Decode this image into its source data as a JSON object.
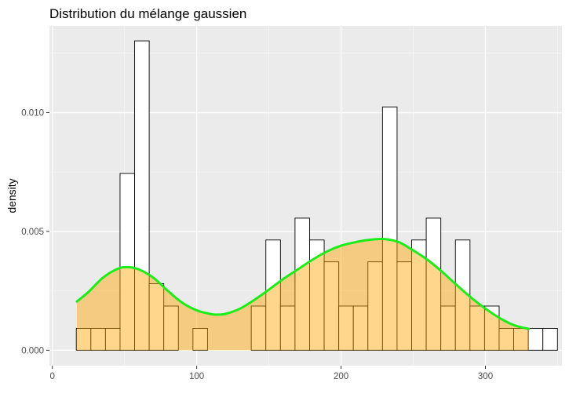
{
  "chart_data": {
    "type": "bar",
    "title": "Distribution du mélange gaussien",
    "xlabel": "",
    "ylabel": "density",
    "xlim": [
      -2,
      353
    ],
    "ylim": [
      -0.00065,
      0.01365
    ],
    "x_ticks": [
      0,
      100,
      200,
      300
    ],
    "x_tick_labels": [
      "0",
      "100",
      "200",
      "300"
    ],
    "y_ticks": [
      0.0,
      0.005,
      0.01
    ],
    "y_tick_labels": [
      "0.000",
      "0.005",
      "0.010"
    ],
    "grid": true,
    "colors": {
      "panel_background": "#ebebeb",
      "grid_major": "#ffffff",
      "grid_minor": "#f5f5f5",
      "histogram_fill": "#ffffff",
      "histogram_outline": "#000000",
      "density_fill": "#ffa500",
      "density_line": "#1aee1a"
    },
    "histogram": {
      "bin_width": 10.1,
      "bin_start": 16.6,
      "counts": [
        0.00092,
        0.00092,
        0.00092,
        0.00744,
        0.01302,
        0.0028,
        0.00186,
        0,
        0.00092,
        0,
        0,
        0,
        0.00186,
        0.00464,
        0.00186,
        0.00556,
        0.00464,
        0.00372,
        0.00186,
        0.00186,
        0.00372,
        0.01024,
        0.00372,
        0.00464,
        0.00556,
        0.00186,
        0.00464,
        0.00186,
        0.00186,
        0.00092,
        0.00092,
        0.00092,
        0.00092
      ]
    },
    "density": {
      "x": [
        17,
        25,
        35,
        45,
        52,
        60,
        70,
        80,
        90,
        100,
        110,
        115,
        120,
        130,
        140,
        150,
        160,
        170,
        180,
        190,
        200,
        210,
        220,
        230,
        240,
        250,
        260,
        270,
        280,
        290,
        300,
        310,
        320,
        330
      ],
      "y": [
        0.00205,
        0.00245,
        0.00305,
        0.00342,
        0.0035,
        0.0034,
        0.00305,
        0.0025,
        0.002,
        0.00168,
        0.00152,
        0.0015,
        0.00153,
        0.00175,
        0.00212,
        0.00255,
        0.003,
        0.0034,
        0.0038,
        0.00415,
        0.0044,
        0.00455,
        0.00465,
        0.00468,
        0.00455,
        0.0042,
        0.0038,
        0.0033,
        0.00275,
        0.00222,
        0.00175,
        0.00135,
        0.00105,
        0.0009
      ]
    }
  }
}
